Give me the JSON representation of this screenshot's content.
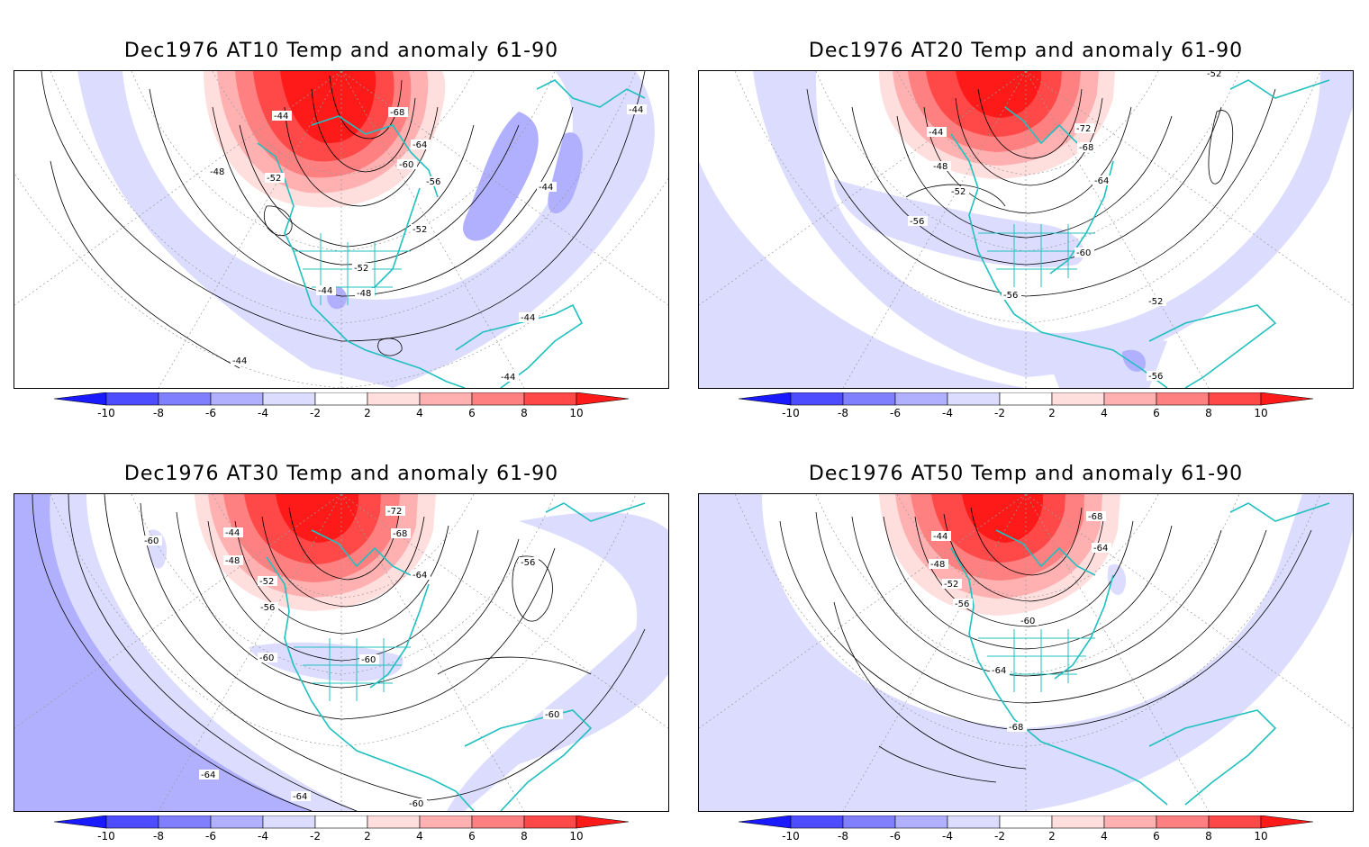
{
  "colors": {
    "neg_10": "#1a1aff",
    "neg_8": "#4d4dff",
    "neg_6": "#8080ff",
    "neg_4": "#b0b0ff",
    "neg_2": "#dcdcff",
    "pos_2": "#ffdede",
    "pos_4": "#ffb0b0",
    "pos_6": "#ff8080",
    "pos_8": "#ff4848",
    "pos_10": "#ff1a1a",
    "coast": "#20c0c0",
    "contour": "#000000"
  },
  "colorbar": {
    "labels": [
      "-10",
      "-8",
      "-6",
      "-4",
      "-2",
      "2",
      "4",
      "6",
      "8",
      "10"
    ]
  },
  "panels": [
    {
      "title": "Dec1976 AT10 Temp and anomaly 61-90",
      "contour_labels": [
        "-44",
        "-68",
        "-64",
        "-60",
        "-56",
        "-52",
        "-48",
        "-44",
        "-52",
        "-52",
        "-48",
        "-44",
        "-44",
        "-44",
        "-44",
        "-44"
      ]
    },
    {
      "title": "Dec1976 AT20 Temp and anomaly 61-90",
      "contour_labels": [
        "-52",
        "-72",
        "-68",
        "-64",
        "-44",
        "-48",
        "-52",
        "-56",
        "-60",
        "-56",
        "-52",
        "-56"
      ]
    },
    {
      "title": "Dec1976 AT30 Temp and anomaly 61-90",
      "contour_labels": [
        "-72",
        "-68",
        "-64",
        "-60",
        "-56",
        "-44",
        "-48",
        "-52",
        "-56",
        "-60",
        "-60",
        "-60",
        "-64",
        "-64",
        "-60"
      ]
    },
    {
      "title": "Dec1976 AT50 Temp and anomaly 61-90",
      "contour_labels": [
        "-68",
        "-64",
        "-44",
        "-48",
        "-52",
        "-56",
        "-60",
        "-64",
        "-68"
      ]
    }
  ]
}
